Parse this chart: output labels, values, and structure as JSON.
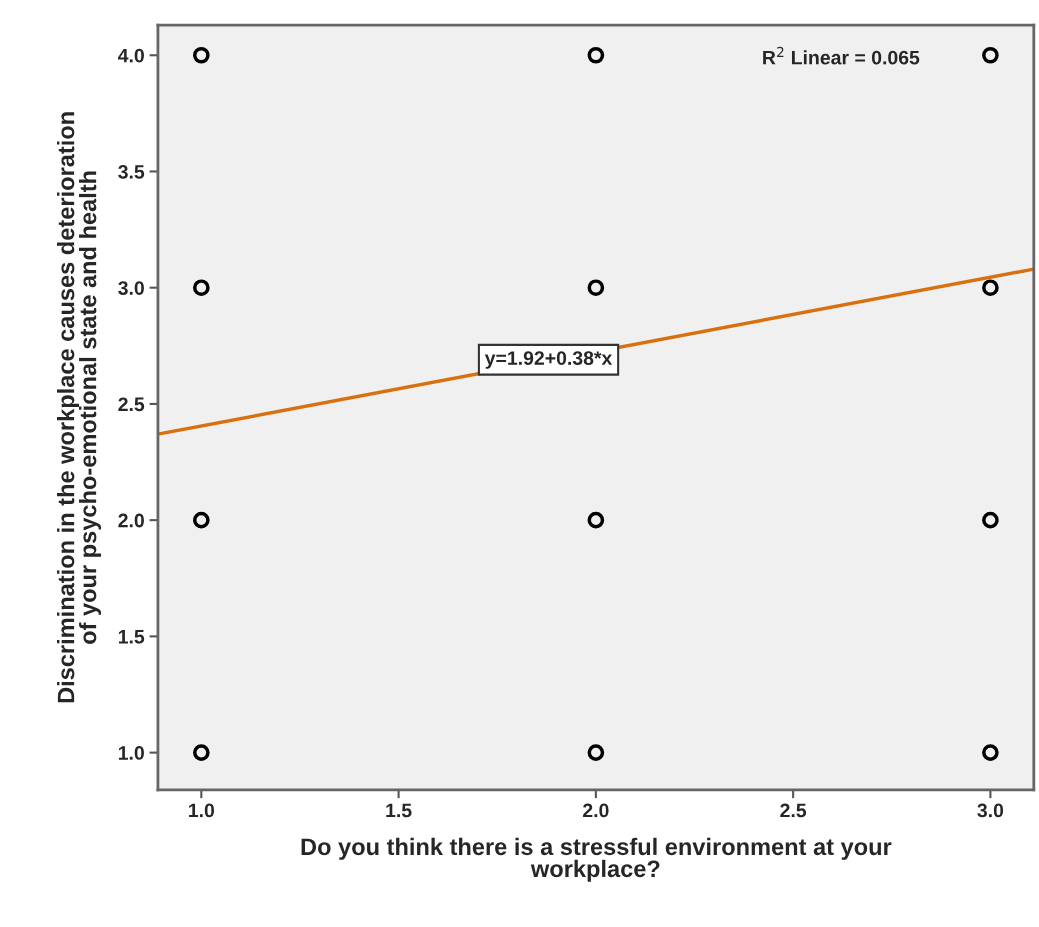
{
  "chart_data": {
    "type": "scatter",
    "xlabel": "Do you think there is a stressful environment at your\nworkplace?",
    "ylabel": "Discrimination in the workplace causes deterioration\nof your psycho-emotional state and health",
    "xlim": [
      0.89,
      3.11
    ],
    "ylim": [
      0.84,
      4.13
    ],
    "xticks": [
      {
        "value": 1,
        "label": "1.0"
      },
      {
        "value": 1.5,
        "label": "1.5"
      },
      {
        "value": 2,
        "label": "2.0"
      },
      {
        "value": 2.5,
        "label": "2.5"
      },
      {
        "value": 3,
        "label": "3.0"
      }
    ],
    "yticks": [
      {
        "value": 1,
        "label": "1.0"
      },
      {
        "value": 1.5,
        "label": "1.5"
      },
      {
        "value": 2,
        "label": "2.0"
      },
      {
        "value": 2.5,
        "label": "2.5"
      },
      {
        "value": 3,
        "label": "3.0"
      },
      {
        "value": 3.5,
        "label": "3.5"
      },
      {
        "value": 4,
        "label": "4.0"
      }
    ],
    "grid": false,
    "series": [
      {
        "marker": "circle",
        "color": "#000000",
        "x": [
          1,
          1,
          1,
          1,
          2,
          2,
          2,
          2,
          3,
          3,
          3,
          3
        ],
        "values": [
          4,
          3,
          2,
          1,
          4,
          3,
          2,
          1,
          4,
          3,
          2,
          1
        ]
      },
      {
        "type": "line",
        "marker": "none",
        "color": "#d9700f",
        "x": [
          0.89,
          3.11
        ],
        "values": [
          2.37,
          3.08
        ]
      }
    ],
    "annotations": [
      "R$^{2}$ Linear = 0.065",
      {
        "text": "y=1.92+0.38*x",
        "x": 1.88,
        "y": 2.69
      }
    ]
  }
}
